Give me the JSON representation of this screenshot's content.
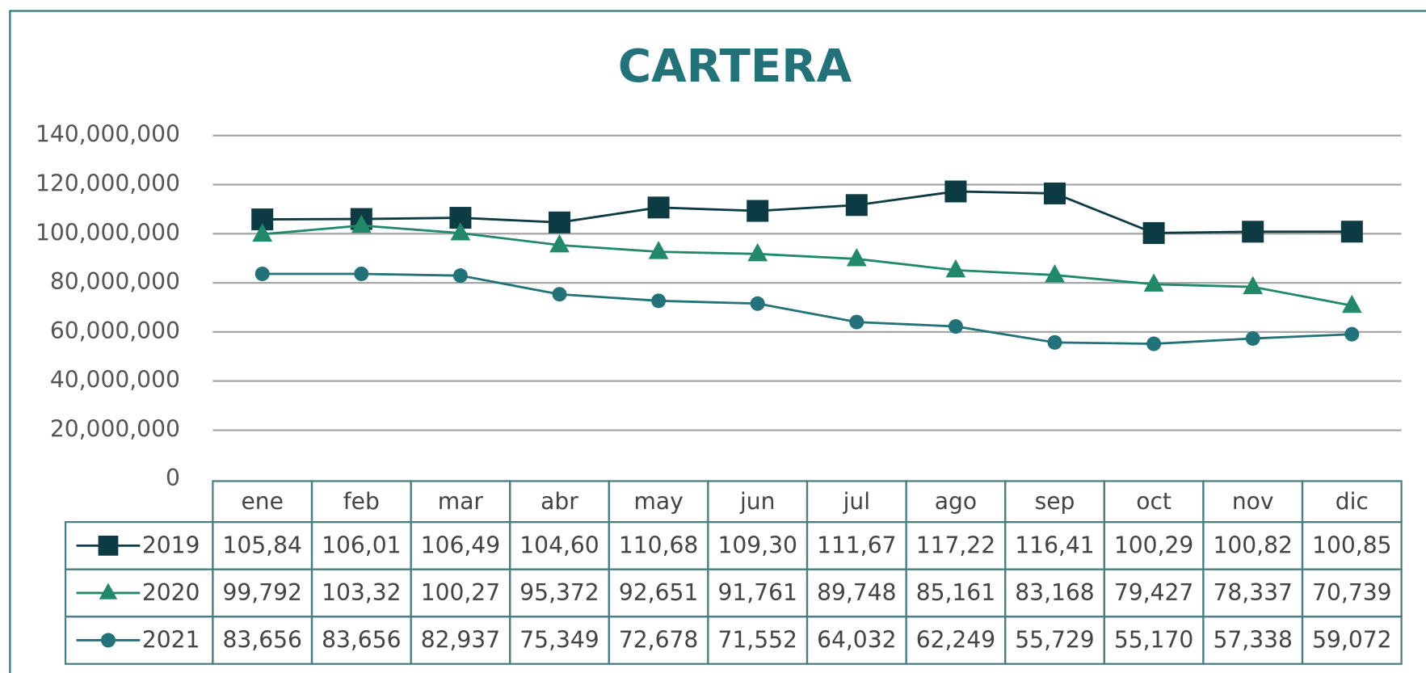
{
  "chart_data": {
    "type": "line",
    "title": "CARTERA",
    "categories": [
      "ene",
      "feb",
      "mar",
      "abr",
      "may",
      "jun",
      "jul",
      "ago",
      "sep",
      "oct",
      "nov",
      "dic"
    ],
    "series": [
      {
        "name": "2019",
        "color": "#0d3b44",
        "marker": "square",
        "values": [
          105840000,
          106010000,
          106490000,
          104600000,
          110680000,
          109300000,
          111670000,
          117220000,
          116410000,
          100290000,
          100820000,
          100850000
        ],
        "value_labels": [
          "105,84",
          "106,01",
          "106,49",
          "104,60",
          "110,68",
          "109,30",
          "111,67",
          "117,22",
          "116,41",
          "100,29",
          "100,82",
          "100,85"
        ]
      },
      {
        "name": "2020",
        "color": "#21896a",
        "marker": "triangle",
        "values": [
          99792000,
          103320000,
          100270000,
          95372000,
          92651000,
          91761000,
          89748000,
          85161000,
          83168000,
          79427000,
          78337000,
          70739000
        ],
        "value_labels": [
          "99,792",
          "103,32",
          "100,27",
          "95,372",
          "92,651",
          "91,761",
          "89,748",
          "85,161",
          "83,168",
          "79,427",
          "78,337",
          "70,739"
        ]
      },
      {
        "name": "2021",
        "color": "#23727a",
        "marker": "circle",
        "values": [
          83656000,
          83656000,
          82937000,
          75349000,
          72678000,
          71552000,
          64032000,
          62249000,
          55729000,
          55170000,
          57338000,
          59072000
        ],
        "value_labels": [
          "83,656",
          "83,656",
          "82,937",
          "75,349",
          "72,678",
          "71,552",
          "64,032",
          "62,249",
          "55,729",
          "55,170",
          "57,338",
          "59,072"
        ]
      }
    ],
    "ylim": [
      0,
      140000000
    ],
    "yticks": [
      0,
      {
        "value": 20000000,
        "label": "20,000,000"
      },
      {
        "value": 40000000,
        "label": "40,000,000"
      },
      {
        "value": 60000000,
        "label": "60,000,000"
      },
      {
        "value": 80000000,
        "label": "80,000,000"
      },
      {
        "value": 100000000,
        "label": "100,000,000"
      },
      {
        "value": 120000000,
        "label": "120,000,000"
      },
      {
        "value": 140000000,
        "label": "140,000,000"
      }
    ],
    "grid": true,
    "data_table": true
  }
}
